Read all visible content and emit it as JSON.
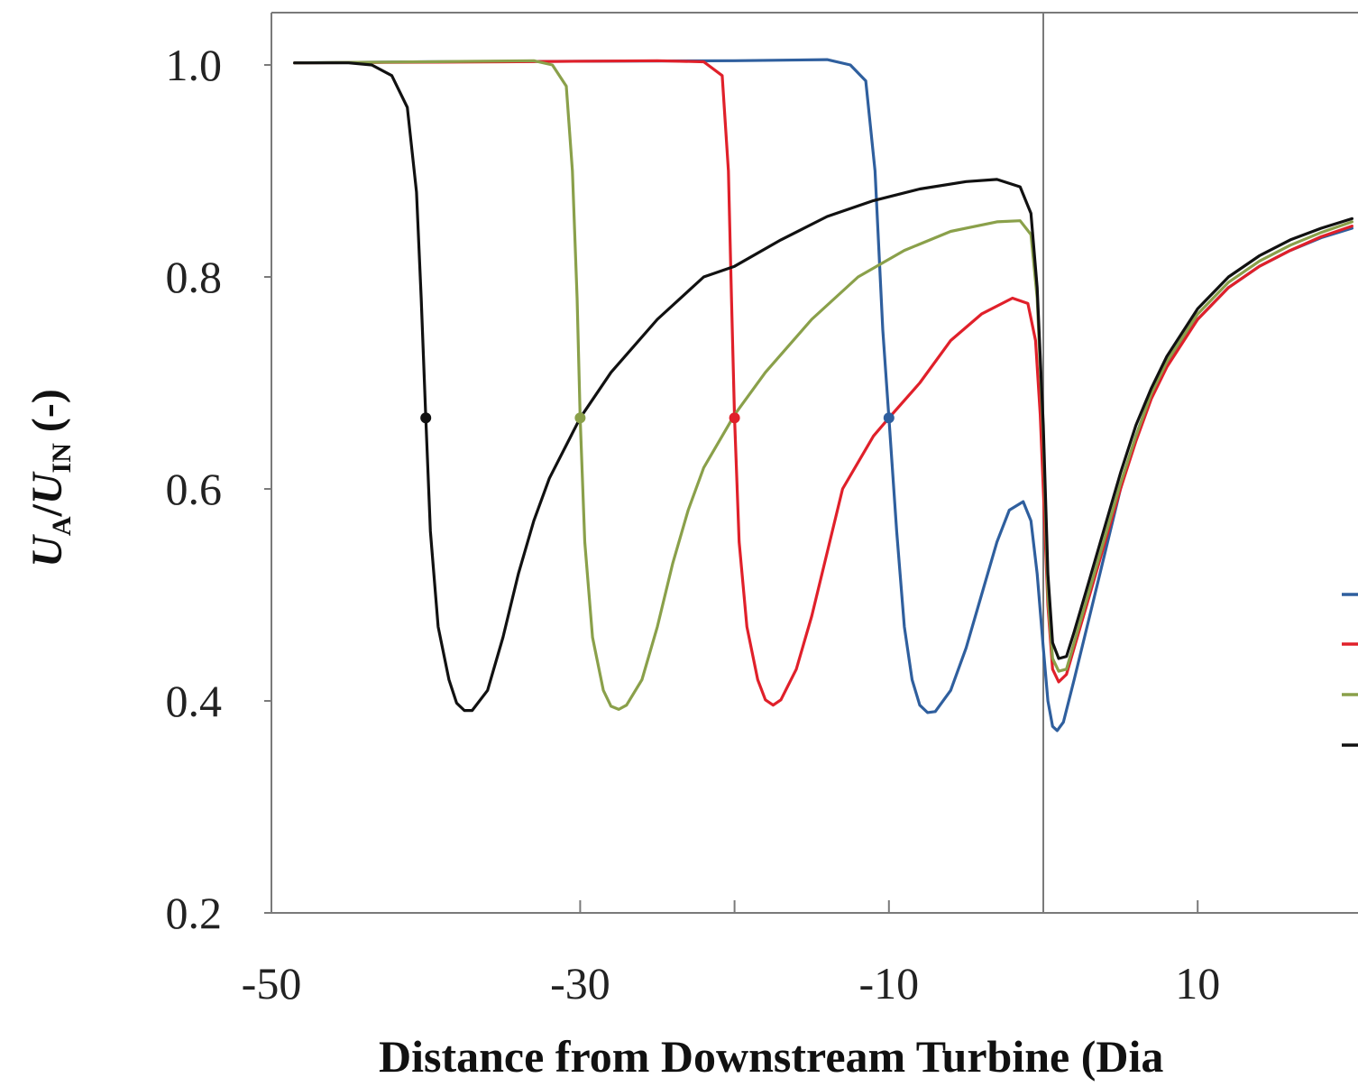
{
  "chart_data": {
    "type": "line",
    "title": "",
    "xlabel": "Distance from Downstream Turbine (Dia",
    "ylabel": {
      "u_a": "U",
      "sub_a": "A",
      "slash": "/",
      "u_in": "U",
      "sub_in": "IN",
      "unit": " (-)"
    },
    "xlim": [
      -50,
      20
    ],
    "ylim": [
      0.2,
      1.05
    ],
    "x_ticks": [
      -50,
      -30,
      -10,
      10
    ],
    "x_minor_ticks": [
      -30,
      -20,
      -10,
      10
    ],
    "y_ticks": [
      0.2,
      0.4,
      0.6,
      0.8,
      1.0
    ],
    "y_tick_labels": [
      "0.2",
      "0.4",
      "0.6",
      "0.8",
      "1.0"
    ],
    "x_tick_labels": [
      "-50",
      "-30",
      "-10",
      "10"
    ],
    "vertical_line_x": 0,
    "grid": false,
    "legend": "right (cut off)",
    "series": [
      {
        "color": "#2f5f9e",
        "marker_point": [
          -10,
          0.667
        ],
        "points": [
          [
            -48.5,
            1.002
          ],
          [
            -40,
            1.003
          ],
          [
            -20,
            1.004
          ],
          [
            -14,
            1.005
          ],
          [
            -12.5,
            1.0
          ],
          [
            -11.5,
            0.985
          ],
          [
            -10.9,
            0.9
          ],
          [
            -10.4,
            0.75
          ],
          [
            -10,
            0.667
          ],
          [
            -9.5,
            0.56
          ],
          [
            -9,
            0.47
          ],
          [
            -8.5,
            0.42
          ],
          [
            -8,
            0.396
          ],
          [
            -7.5,
            0.389
          ],
          [
            -7,
            0.39
          ],
          [
            -6,
            0.41
          ],
          [
            -5,
            0.45
          ],
          [
            -4,
            0.5
          ],
          [
            -3,
            0.55
          ],
          [
            -2.2,
            0.58
          ],
          [
            -1.3,
            0.588
          ],
          [
            -0.8,
            0.57
          ],
          [
            -0.4,
            0.52
          ],
          [
            0,
            0.45
          ],
          [
            0.3,
            0.4
          ],
          [
            0.6,
            0.376
          ],
          [
            0.9,
            0.372
          ],
          [
            1.3,
            0.38
          ],
          [
            2,
            0.42
          ],
          [
            3,
            0.48
          ],
          [
            4,
            0.54
          ],
          [
            5,
            0.6
          ],
          [
            6,
            0.65
          ],
          [
            7,
            0.69
          ],
          [
            8,
            0.72
          ],
          [
            10,
            0.76
          ],
          [
            12,
            0.79
          ],
          [
            14,
            0.81
          ],
          [
            16,
            0.825
          ],
          [
            18,
            0.837
          ],
          [
            20,
            0.846
          ]
        ]
      },
      {
        "color": "#e0202a",
        "marker_point": [
          -20,
          0.667
        ],
        "points": [
          [
            -48.5,
            1.002
          ],
          [
            -35,
            1.003
          ],
          [
            -25,
            1.004
          ],
          [
            -22,
            1.003
          ],
          [
            -20.8,
            0.99
          ],
          [
            -20.4,
            0.9
          ],
          [
            -20.2,
            0.78
          ],
          [
            -20,
            0.667
          ],
          [
            -19.7,
            0.55
          ],
          [
            -19.2,
            0.47
          ],
          [
            -18.5,
            0.42
          ],
          [
            -18,
            0.401
          ],
          [
            -17.5,
            0.396
          ],
          [
            -17,
            0.401
          ],
          [
            -16,
            0.43
          ],
          [
            -15,
            0.48
          ],
          [
            -14,
            0.54
          ],
          [
            -13,
            0.6
          ],
          [
            -11,
            0.65
          ],
          [
            -10,
            0.667
          ],
          [
            -8,
            0.7
          ],
          [
            -6,
            0.74
          ],
          [
            -4,
            0.765
          ],
          [
            -2,
            0.78
          ],
          [
            -1,
            0.775
          ],
          [
            -0.5,
            0.74
          ],
          [
            -0.2,
            0.67
          ],
          [
            0,
            0.6
          ],
          [
            0.3,
            0.49
          ],
          [
            0.6,
            0.43
          ],
          [
            1,
            0.418
          ],
          [
            1.5,
            0.425
          ],
          [
            2,
            0.45
          ],
          [
            3,
            0.5
          ],
          [
            4,
            0.55
          ],
          [
            5,
            0.6
          ],
          [
            6,
            0.645
          ],
          [
            7,
            0.685
          ],
          [
            8,
            0.715
          ],
          [
            10,
            0.76
          ],
          [
            12,
            0.79
          ],
          [
            14,
            0.81
          ],
          [
            16,
            0.825
          ],
          [
            18,
            0.838
          ],
          [
            20,
            0.848
          ]
        ]
      },
      {
        "color": "#8aa04a",
        "marker_point": [
          -30,
          0.667
        ],
        "points": [
          [
            -48.5,
            1.002
          ],
          [
            -40,
            1.003
          ],
          [
            -33,
            1.004
          ],
          [
            -31.8,
            1.0
          ],
          [
            -30.9,
            0.98
          ],
          [
            -30.5,
            0.9
          ],
          [
            -30.2,
            0.78
          ],
          [
            -30,
            0.667
          ],
          [
            -29.7,
            0.55
          ],
          [
            -29.2,
            0.46
          ],
          [
            -28.5,
            0.41
          ],
          [
            -28,
            0.395
          ],
          [
            -27.5,
            0.392
          ],
          [
            -27,
            0.396
          ],
          [
            -26,
            0.42
          ],
          [
            -25,
            0.47
          ],
          [
            -24,
            0.53
          ],
          [
            -23,
            0.58
          ],
          [
            -22,
            0.62
          ],
          [
            -20,
            0.67
          ],
          [
            -18,
            0.71
          ],
          [
            -15,
            0.76
          ],
          [
            -12,
            0.8
          ],
          [
            -9,
            0.825
          ],
          [
            -6,
            0.843
          ],
          [
            -3,
            0.852
          ],
          [
            -1.5,
            0.853
          ],
          [
            -0.8,
            0.84
          ],
          [
            -0.4,
            0.78
          ],
          [
            0,
            0.65
          ],
          [
            0.3,
            0.5
          ],
          [
            0.6,
            0.44
          ],
          [
            1,
            0.428
          ],
          [
            1.5,
            0.43
          ],
          [
            2,
            0.455
          ],
          [
            3,
            0.505
          ],
          [
            4,
            0.555
          ],
          [
            5,
            0.605
          ],
          [
            6,
            0.65
          ],
          [
            7,
            0.69
          ],
          [
            8,
            0.72
          ],
          [
            10,
            0.765
          ],
          [
            12,
            0.795
          ],
          [
            14,
            0.815
          ],
          [
            16,
            0.83
          ],
          [
            18,
            0.842
          ],
          [
            20,
            0.852
          ]
        ]
      },
      {
        "color": "#111111",
        "marker_point": [
          -40,
          0.667
        ],
        "points": [
          [
            -48.5,
            1.002
          ],
          [
            -45,
            1.002
          ],
          [
            -43.5,
            1.0
          ],
          [
            -42.2,
            0.99
          ],
          [
            -41.2,
            0.96
          ],
          [
            -40.6,
            0.88
          ],
          [
            -40.3,
            0.78
          ],
          [
            -40,
            0.667
          ],
          [
            -39.7,
            0.56
          ],
          [
            -39.2,
            0.47
          ],
          [
            -38.5,
            0.42
          ],
          [
            -38,
            0.398
          ],
          [
            -37.5,
            0.391
          ],
          [
            -37,
            0.391
          ],
          [
            -36,
            0.41
          ],
          [
            -35,
            0.46
          ],
          [
            -34,
            0.52
          ],
          [
            -33,
            0.57
          ],
          [
            -32,
            0.61
          ],
          [
            -30,
            0.667
          ],
          [
            -28,
            0.71
          ],
          [
            -25,
            0.76
          ],
          [
            -22,
            0.8
          ],
          [
            -20,
            0.81
          ],
          [
            -17,
            0.835
          ],
          [
            -14,
            0.857
          ],
          [
            -11,
            0.872
          ],
          [
            -8,
            0.883
          ],
          [
            -5,
            0.89
          ],
          [
            -3,
            0.892
          ],
          [
            -1.5,
            0.885
          ],
          [
            -0.8,
            0.86
          ],
          [
            -0.4,
            0.79
          ],
          [
            0,
            0.66
          ],
          [
            0.3,
            0.52
          ],
          [
            0.6,
            0.455
          ],
          [
            1,
            0.44
          ],
          [
            1.5,
            0.442
          ],
          [
            2,
            0.465
          ],
          [
            3,
            0.515
          ],
          [
            4,
            0.565
          ],
          [
            5,
            0.615
          ],
          [
            6,
            0.66
          ],
          [
            7,
            0.695
          ],
          [
            8,
            0.725
          ],
          [
            10,
            0.77
          ],
          [
            12,
            0.8
          ],
          [
            14,
            0.82
          ],
          [
            16,
            0.835
          ],
          [
            18,
            0.846
          ],
          [
            20,
            0.855
          ]
        ]
      }
    ],
    "legend_line_colors": [
      "#2f5f9e",
      "#e0202a",
      "#8aa04a",
      "#111111"
    ]
  }
}
